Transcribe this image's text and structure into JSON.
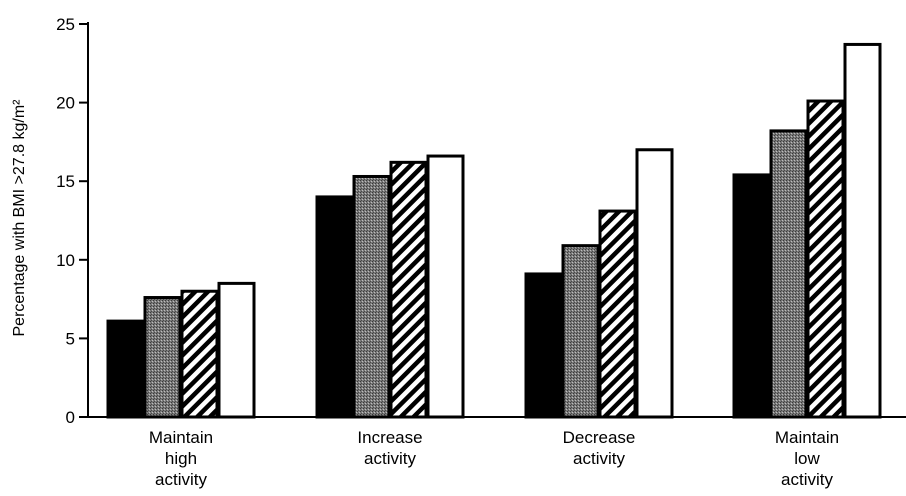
{
  "chart_data": {
    "type": "bar",
    "ylabel": "Percentage with BMI >27.8 kg/m²",
    "ylim": [
      0,
      25
    ],
    "yticks": [
      0,
      5,
      10,
      15,
      20,
      25
    ],
    "grid": false,
    "categories": [
      [
        "Maintain",
        "high",
        "activity"
      ],
      [
        "Increase",
        "activity"
      ],
      [
        "Decrease",
        "activity"
      ],
      [
        "Maintain",
        "low",
        "activity"
      ]
    ],
    "series": [
      {
        "fill": "solid-black",
        "values": [
          6.1,
          14.0,
          9.1,
          15.4
        ]
      },
      {
        "fill": "stippled-gray",
        "values": [
          7.6,
          15.3,
          10.9,
          18.2
        ]
      },
      {
        "fill": "diagonal-hatch",
        "values": [
          8.0,
          16.2,
          13.1,
          20.1
        ]
      },
      {
        "fill": "white",
        "values": [
          8.5,
          16.6,
          17.0,
          23.7
        ]
      }
    ]
  }
}
